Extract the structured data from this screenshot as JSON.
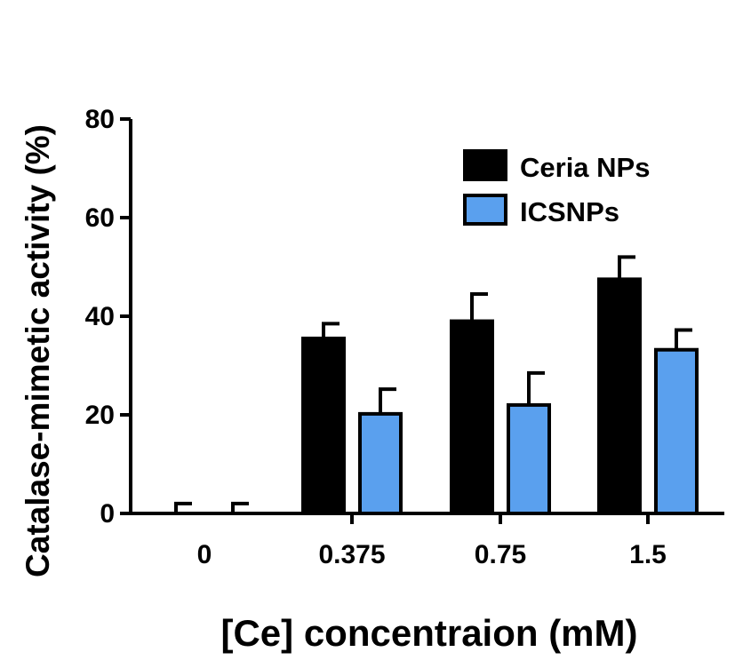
{
  "chart_data": {
    "type": "bar",
    "title": "",
    "xlabel": "[Ce] concentraion (mM)",
    "ylabel": "Catalase-mimetic activity (%)",
    "categories": [
      "0",
      "0.375",
      "0.75",
      "1.5"
    ],
    "ylim": [
      0,
      80
    ],
    "yticks": [
      "0",
      "20",
      "40",
      "60",
      "80"
    ],
    "legend_position": "top-right",
    "grid": false,
    "series": [
      {
        "name": "Ceria NPs",
        "color": "#000000",
        "values": [
          0,
          35.5,
          39,
          47.5
        ],
        "errors": [
          2,
          3,
          5.5,
          4.5
        ]
      },
      {
        "name": "ICSNPs",
        "color": "#5aa0ee",
        "values": [
          0,
          20.2,
          22,
          33.2
        ],
        "errors": [
          2,
          5,
          6.5,
          4
        ]
      }
    ]
  }
}
